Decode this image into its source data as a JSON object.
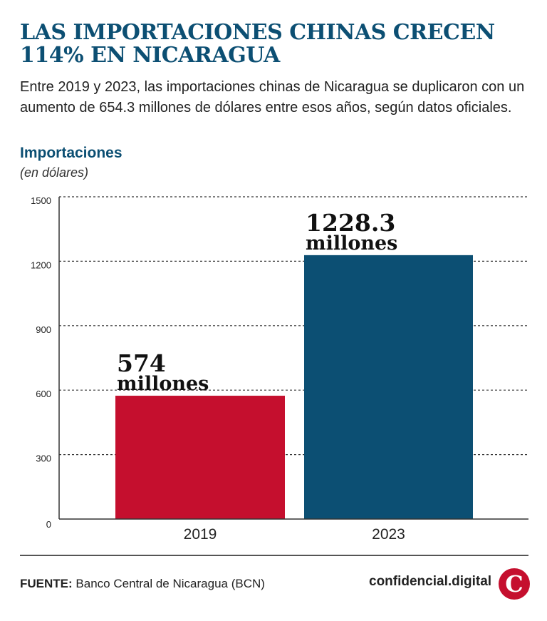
{
  "header": {
    "title": "LAS IMPORTACIONES CHINAS CRECEN 114% EN NICARAGUA",
    "subtitle": "Entre 2019 y 2023, las importaciones chinas de Nicaragua se duplicaron con un aumento de 654.3 millones de dólares entre esos años, según datos oficiales."
  },
  "chart_data": {
    "type": "bar",
    "title": "Importaciones",
    "ylabel": "(en dólares)",
    "categories": [
      "2019",
      "2023"
    ],
    "values": [
      574,
      1228.3
    ],
    "data_labels": [
      {
        "value": "574",
        "unit": "millones"
      },
      {
        "value": "1228.3",
        "unit": "millones"
      }
    ],
    "colors": [
      "#c50f2e",
      "#0c4f73"
    ],
    "ylim": [
      0,
      1500
    ],
    "yticks": [
      0,
      300,
      600,
      900,
      1200,
      1500
    ],
    "grid": true
  },
  "footer": {
    "source_label": "FUENTE:",
    "source": "Banco Central de Nicaragua (BCN)",
    "brand": "confidencial.digital",
    "logo_letter": "C"
  }
}
